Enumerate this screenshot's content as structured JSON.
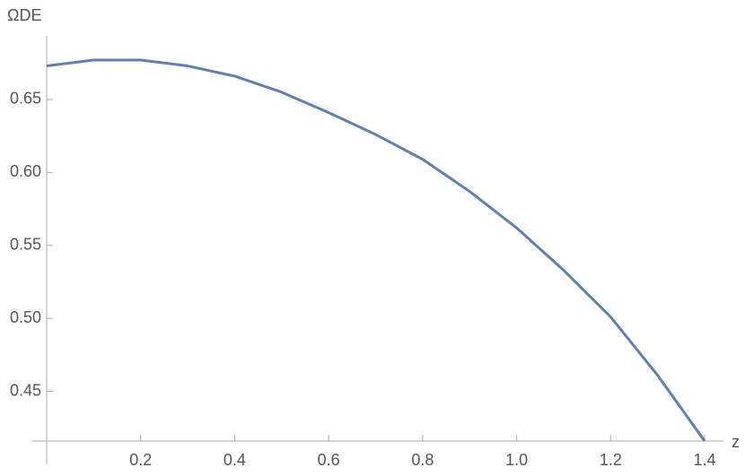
{
  "chart_data": {
    "type": "line",
    "y_label": "ΩDE",
    "x_label": "z",
    "x": [
      0,
      0.1,
      0.2,
      0.3,
      0.4,
      0.5,
      0.6,
      0.7,
      0.8,
      0.9,
      1.0,
      1.1,
      1.2,
      1.3,
      1.4
    ],
    "series": [
      {
        "color": "#5e81b5",
        "values": [
          0.673,
          0.677,
          0.677,
          0.673,
          0.666,
          0.655,
          0.641,
          0.626,
          0.609,
          0.587,
          0.562,
          0.533,
          0.501,
          0.461,
          0.416
        ]
      }
    ],
    "xlim": [
      0,
      1.44
    ],
    "ylim": [
      0.416,
      0.6936
    ],
    "xticks": [
      0.2,
      0.4,
      0.6,
      0.8,
      {
        "value": 1.0,
        "label": "1.0"
      },
      1.2,
      1.4
    ],
    "yticks": [
      0.45,
      {
        "value": 0.5,
        "label": "0.50"
      },
      0.55,
      {
        "value": 0.6,
        "label": "0.60"
      },
      0.65
    ]
  }
}
